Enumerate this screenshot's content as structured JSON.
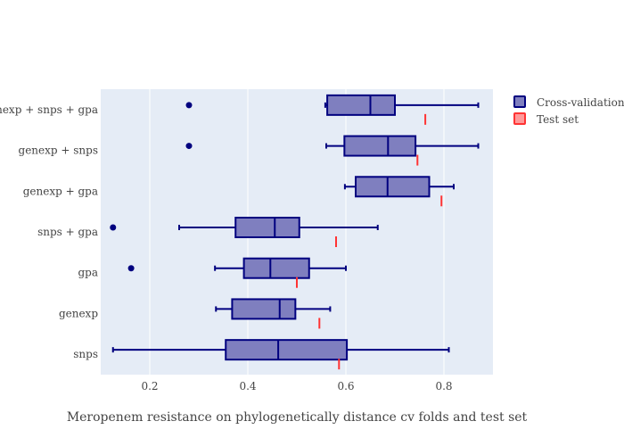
{
  "chart_data": {
    "type": "box",
    "orientation": "horizontal",
    "title": "",
    "xlabel": "Meropenem resistance on phylogenetically distance cv folds and test set",
    "ylabel": "",
    "xlim": [
      0.1,
      0.9
    ],
    "x_ticks": [
      0.2,
      0.4,
      0.6,
      0.8
    ],
    "x_tick_labels": [
      "0.2",
      "0.4",
      "0.6",
      "0.8"
    ],
    "grid": "vertical",
    "legend_position": "top-right",
    "categories": [
      "snps",
      "genexp",
      "gpa",
      "snps + gpa",
      "genexp + gpa",
      "genexp + snps",
      "genexp + snps + gpa"
    ],
    "series": [
      {
        "name": "Cross-validation",
        "color": "#00007f",
        "fill": "#7f7fbf",
        "boxes": [
          {
            "category": "snps",
            "min": 0.125,
            "q1": 0.355,
            "median": 0.462,
            "q3": 0.602,
            "max": 0.81,
            "outliers": []
          },
          {
            "category": "genexp",
            "min": 0.335,
            "q1": 0.368,
            "median": 0.465,
            "q3": 0.497,
            "max": 0.568,
            "outliers": []
          },
          {
            "category": "gpa",
            "min": 0.333,
            "q1": 0.392,
            "median": 0.446,
            "q3": 0.525,
            "max": 0.6,
            "outliers": [
              0.162
            ]
          },
          {
            "category": "snps + gpa",
            "min": 0.26,
            "q1": 0.375,
            "median": 0.455,
            "q3": 0.505,
            "max": 0.665,
            "outliers": [
              0.125
            ]
          },
          {
            "category": "genexp + gpa",
            "min": 0.598,
            "q1": 0.62,
            "median": 0.685,
            "q3": 0.77,
            "max": 0.82,
            "outliers": []
          },
          {
            "category": "genexp + snps",
            "min": 0.56,
            "q1": 0.597,
            "median": 0.686,
            "q3": 0.742,
            "max": 0.87,
            "outliers": [
              0.28
            ]
          },
          {
            "category": "genexp + snps + gpa",
            "min": 0.558,
            "q1": 0.562,
            "median": 0.65,
            "q3": 0.7,
            "max": 0.87,
            "outliers": [
              0.28
            ]
          }
        ]
      },
      {
        "name": "Test set",
        "color": "#ff3333",
        "fill": "#ff9999",
        "values": [
          {
            "category": "snps",
            "value": 0.586
          },
          {
            "category": "genexp",
            "value": 0.546
          },
          {
            "category": "gpa",
            "value": 0.5
          },
          {
            "category": "snps + gpa",
            "value": 0.58
          },
          {
            "category": "genexp + gpa",
            "value": 0.795
          },
          {
            "category": "genexp + snps",
            "value": 0.746
          },
          {
            "category": "genexp + snps + gpa",
            "value": 0.762
          }
        ]
      }
    ]
  }
}
